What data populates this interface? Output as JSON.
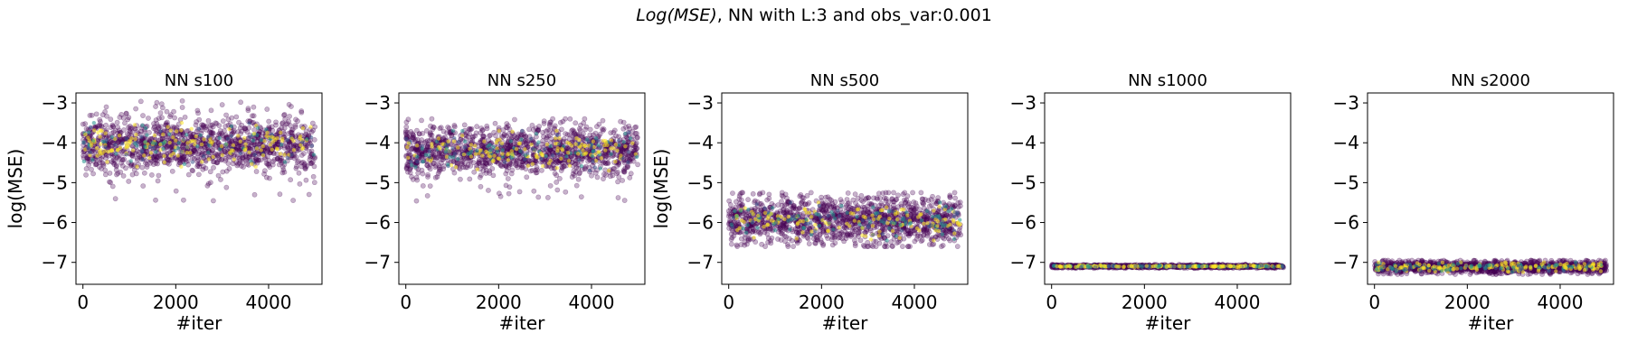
{
  "figure": {
    "title_math": "Log(MSE)",
    "title_rest": ", NN with L:3 and obs_var:0.001"
  },
  "colors": {
    "viridis_low": "#440154",
    "viridis_high": "#fde725",
    "axis": "#000000"
  },
  "chart_data": [
    {
      "type": "scatter",
      "title": "NN s100",
      "xlabel": "#iter",
      "ylabel": "log(MSE)",
      "xlim": [
        -150,
        5150
      ],
      "ylim": [
        -7.55,
        -2.75
      ],
      "xticks": [
        0,
        2000,
        4000
      ],
      "yticks": [
        -3,
        -4,
        -5,
        -6,
        -7
      ],
      "n_iter": 5000,
      "center": -4.05,
      "spread_min": -5.5,
      "spread_max": -2.95,
      "band_low": -4.6,
      "band_high": -3.5,
      "colormap": "viridis",
      "point_alpha": 0.3
    },
    {
      "type": "scatter",
      "title": "NN s250",
      "xlabel": "#iter",
      "ylabel": "",
      "xlim": [
        -150,
        5150
      ],
      "ylim": [
        -7.55,
        -2.75
      ],
      "xticks": [
        0,
        2000,
        4000
      ],
      "yticks": [
        -3,
        -4,
        -5,
        -6,
        -7
      ],
      "n_iter": 5000,
      "center": -4.2,
      "spread_min": -5.5,
      "spread_max": -3.4,
      "band_low": -4.7,
      "band_high": -3.7,
      "colormap": "viridis",
      "point_alpha": 0.3
    },
    {
      "type": "scatter",
      "title": "NN s500",
      "xlabel": "#iter",
      "ylabel": "log(MSE)",
      "xlim": [
        -150,
        5150
      ],
      "ylim": [
        -7.55,
        -2.75
      ],
      "xticks": [
        0,
        2000,
        4000
      ],
      "yticks": [
        -3,
        -4,
        -5,
        -6,
        -7
      ],
      "n_iter": 5000,
      "center": -5.95,
      "spread_min": -6.6,
      "spread_max": -5.25,
      "band_low": -6.45,
      "band_high": -5.5,
      "colormap": "viridis",
      "point_alpha": 0.3
    },
    {
      "type": "scatter",
      "title": "NN s1000",
      "xlabel": "#iter",
      "ylabel": "",
      "xlim": [
        -150,
        5150
      ],
      "ylim": [
        -7.55,
        -2.75
      ],
      "xticks": [
        0,
        2000,
        4000
      ],
      "yticks": [
        -3,
        -4,
        -5,
        -6,
        -7
      ],
      "n_iter": 5000,
      "center": -7.1,
      "spread_min": -7.15,
      "spread_max": -7.05,
      "band_low": -7.13,
      "band_high": -7.07,
      "colormap": "viridis",
      "point_alpha": 0.3
    },
    {
      "type": "scatter",
      "title": "NN s2000",
      "xlabel": "#iter",
      "ylabel": "",
      "xlim": [
        -150,
        5150
      ],
      "ylim": [
        -7.55,
        -2.75
      ],
      "xticks": [
        0,
        2000,
        4000
      ],
      "yticks": [
        -3,
        -4,
        -5,
        -6,
        -7
      ],
      "n_iter": 5000,
      "center": -7.12,
      "spread_min": -7.3,
      "spread_max": -6.95,
      "band_low": -7.25,
      "band_high": -7.0,
      "colormap": "viridis",
      "point_alpha": 0.3
    }
  ]
}
